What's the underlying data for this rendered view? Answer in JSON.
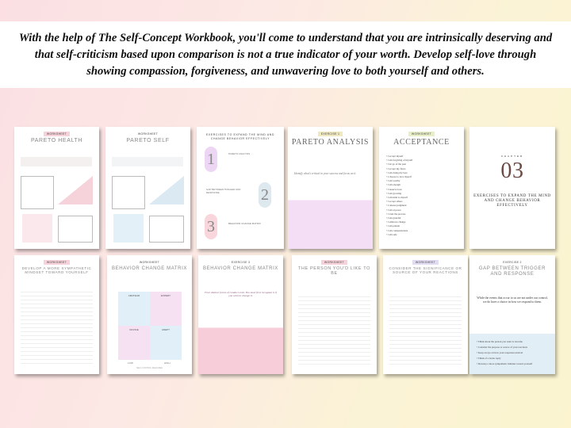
{
  "banner": {
    "text": "With the help of The Self-Concept Workbook, you'll come to understand that you are intrinsically deserving and that self-criticism based upon comparison is not a true indicator of your worth. Develop self-love through showing compassion, forgiveness, and unwavering love to both yourself and others."
  },
  "colors": {
    "pink": "#f6d3da",
    "blue": "#dbe9f3",
    "purple": "#ead7f2",
    "yellow_bg": "#fbf4cf",
    "pink_bg": "#fbdfe3"
  },
  "pages": {
    "p1": {
      "badge": "WORKSHEET",
      "title": "PARETO  HEALTH"
    },
    "p2": {
      "badge": "WORKSHEET",
      "title": "PARETO  SELF"
    },
    "p3": {
      "title": "EXERCISES TO EXPAND THE MIND AND CHANGE BEHAVIOR EFFECTIVELY",
      "nums": [
        "1",
        "2",
        "3"
      ],
      "heads": [
        "PARETO ANALYSIS",
        "GAP BETWEEN TRIGGER AND RESPONSE",
        "BEHAVIOR CHANGE MATRIX"
      ]
    },
    "p4": {
      "badge": "EXERCISE 1",
      "title": "PARETO ANALYSIS",
      "prompt": "Identify what's critical to your success and focus on it."
    },
    "p5": {
      "badge": "WORKSHEET",
      "title": "ACCEPTANCE",
      "items": [
        "I accept myself",
        "I am forgiving of myself",
        "I let go of the past",
        "I accept my flaws",
        "I am doing my best",
        "I choose to love myself",
        "I am worthy",
        "I am enough",
        "I deserve love",
        "I am growing",
        "I am kind to myself",
        "I accept others",
        "I release judgment",
        "I am at peace",
        "I trust the process",
        "I am grateful",
        "I embrace change",
        "I am patient",
        "I am compassionate",
        "I am safe"
      ]
    },
    "p6": {
      "chapter": "CHAPTER",
      "num": "03",
      "title": "EXERCISES TO EXPAND THE MIND AND CHANGE BEHAVIOR EFFECTIVELY"
    },
    "p7": {
      "badge": "WORKSHEET",
      "title": "DEVELOP A MORE SYMPATHETIC MINDSET TOWARD YOURSELF"
    },
    "p8": {
      "badge": "WORKSHEET",
      "title": "BEHAVIOR CHANGE MATRIX",
      "quads": [
        "AMATEUR",
        "EXPERT",
        "NOVICE",
        "ADEPT"
      ],
      "xlabels": [
        "LOW",
        "HIGH"
      ],
      "footer": "SELF-CONTROL REQUIRED"
    },
    "p9": {
      "badge": "EXERCISE 3",
      "title": "BEHAVIOR CHANGE MATRIX",
      "quote": "Four distinct forms of conduct exist. You must first recognize it if you wish to change it."
    },
    "p10": {
      "badge": "WORKSHEET",
      "title": "THE PERSON YOU'D LIKE TO BE"
    },
    "p11": {
      "badge": "WORKSHEET",
      "title": "CONSIDER THE SIGNIFICANCE OR SOURCE OF YOUR REACTIONS"
    },
    "p12": {
      "badge": "EXERCISE 2",
      "title": "GAP BETWEEN TRIGGER AND RESPONSE",
      "quote": "While the events that occur to us are not under our control, we do have a choice in how we respond to them.",
      "bullets": [
        "Think about the person you want to become",
        "Consider the purpose or source of your reactions",
        "Keep an eye on how your responses unravel",
        "Think of a better reply",
        "Develop a more sympathetic mindset toward yourself"
      ]
    }
  }
}
